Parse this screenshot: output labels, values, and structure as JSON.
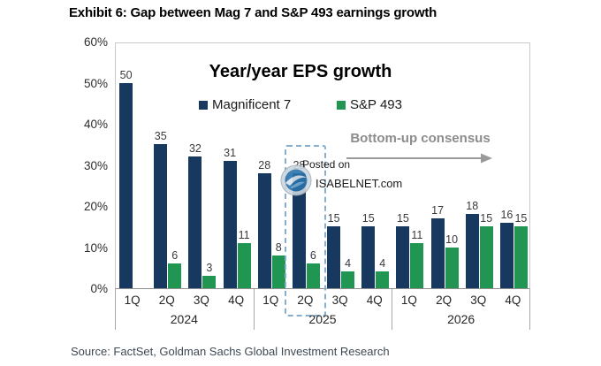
{
  "title": "Exhibit 6: Gap between Mag 7 and S&P 493 earnings growth",
  "source": "Source: FactSet, Goldman Sachs Global Investment Research",
  "watermark": {
    "line1": "Posted on",
    "line2": "ISABELNET.com"
  },
  "annotation": {
    "text": "Bottom-up consensus",
    "color": "#8c8c8c"
  },
  "colors": {
    "mag7": "#17395f",
    "sp493": "#219653",
    "highlight_dash": "#85aecf",
    "plot_border": "#c9c9c9",
    "axis": "#8f8f8f"
  },
  "chart_data": {
    "type": "bar",
    "title": "Year/year EPS growth",
    "xlabel": "",
    "ylabel": "",
    "ylim": [
      0,
      60
    ],
    "yticks": [
      "60%",
      "50%",
      "40%",
      "30%",
      "20%",
      "10%",
      "0%"
    ],
    "grid": false,
    "legend_position": "top-center",
    "years": [
      "2024",
      "2025",
      "2026"
    ],
    "quarters": [
      "1Q",
      "2Q",
      "3Q",
      "4Q",
      "1Q",
      "2Q",
      "3Q",
      "4Q",
      "1Q",
      "2Q",
      "3Q",
      "4Q"
    ],
    "series": [
      {
        "name": "Magnificent 7",
        "color": "#17395f",
        "values": [
          50,
          35,
          32,
          31,
          28,
          28,
          15,
          15,
          15,
          17,
          18,
          16
        ]
      },
      {
        "name": "S&P 493",
        "color": "#219653",
        "values": [
          null,
          6,
          3,
          11,
          8,
          6,
          4,
          4,
          11,
          10,
          15,
          15
        ]
      }
    ],
    "highlight": {
      "label": "2Q 2025",
      "quarter_index": 5,
      "color": "#85aecf"
    }
  }
}
